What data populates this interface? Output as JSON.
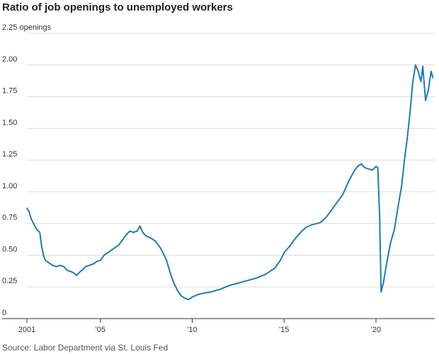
{
  "chart_data": {
    "type": "line",
    "title": "Ratio of job openings to unemployed workers",
    "source": "Source: Labor Department via St. Louis Fed",
    "y_unit_label": "2.25 openings",
    "yticks": [
      {
        "value": 0,
        "label": "0"
      },
      {
        "value": 0.25,
        "label": "0.25"
      },
      {
        "value": 0.5,
        "label": "0.50"
      },
      {
        "value": 0.75,
        "label": "0.75"
      },
      {
        "value": 1.0,
        "label": "1.00"
      },
      {
        "value": 1.25,
        "label": "1.25"
      },
      {
        "value": 1.5,
        "label": "1.50"
      },
      {
        "value": 1.75,
        "label": "1.75"
      },
      {
        "value": 2.0,
        "label": "2.00"
      },
      {
        "value": 2.25,
        "label": "2.25"
      }
    ],
    "xticks": [
      {
        "value": 2001,
        "label": "2001"
      },
      {
        "value": 2005,
        "label": "'05"
      },
      {
        "value": 2010,
        "label": "'10"
      },
      {
        "value": 2015,
        "label": "'15"
      },
      {
        "value": 2020,
        "label": "'20"
      }
    ],
    "xlim": [
      2001,
      2023.2
    ],
    "ylim": [
      0,
      2.25
    ],
    "grid": true,
    "line_color": "#1f7bb0",
    "series": [
      {
        "values": [
          [
            2001.0,
            0.87
          ],
          [
            2001.1,
            0.85
          ],
          [
            2001.25,
            0.78
          ],
          [
            2001.4,
            0.74
          ],
          [
            2001.55,
            0.7
          ],
          [
            2001.7,
            0.68
          ],
          [
            2001.8,
            0.57
          ],
          [
            2001.9,
            0.5
          ],
          [
            2002.0,
            0.46
          ],
          [
            2002.2,
            0.44
          ],
          [
            2002.4,
            0.42
          ],
          [
            2002.6,
            0.41
          ],
          [
            2002.8,
            0.42
          ],
          [
            2003.0,
            0.41
          ],
          [
            2003.2,
            0.38
          ],
          [
            2003.4,
            0.37
          ],
          [
            2003.55,
            0.36
          ],
          [
            2003.7,
            0.34
          ],
          [
            2003.9,
            0.37
          ],
          [
            2004.0,
            0.38
          ],
          [
            2004.2,
            0.41
          ],
          [
            2004.4,
            0.42
          ],
          [
            2004.6,
            0.43
          ],
          [
            2004.8,
            0.45
          ],
          [
            2005.0,
            0.46
          ],
          [
            2005.2,
            0.5
          ],
          [
            2005.4,
            0.52
          ],
          [
            2005.6,
            0.54
          ],
          [
            2005.8,
            0.56
          ],
          [
            2006.0,
            0.58
          ],
          [
            2006.2,
            0.62
          ],
          [
            2006.4,
            0.66
          ],
          [
            2006.6,
            0.69
          ],
          [
            2006.8,
            0.68
          ],
          [
            2007.0,
            0.69
          ],
          [
            2007.15,
            0.73
          ],
          [
            2007.3,
            0.68
          ],
          [
            2007.5,
            0.65
          ],
          [
            2007.7,
            0.64
          ],
          [
            2008.0,
            0.61
          ],
          [
            2008.3,
            0.55
          ],
          [
            2008.6,
            0.46
          ],
          [
            2008.8,
            0.36
          ],
          [
            2009.0,
            0.28
          ],
          [
            2009.2,
            0.22
          ],
          [
            2009.4,
            0.18
          ],
          [
            2009.6,
            0.16
          ],
          [
            2009.8,
            0.15
          ],
          [
            2010.0,
            0.17
          ],
          [
            2010.3,
            0.19
          ],
          [
            2010.6,
            0.2
          ],
          [
            2011.0,
            0.21
          ],
          [
            2011.5,
            0.23
          ],
          [
            2012.0,
            0.26
          ],
          [
            2012.5,
            0.28
          ],
          [
            2013.0,
            0.3
          ],
          [
            2013.5,
            0.32
          ],
          [
            2014.0,
            0.35
          ],
          [
            2014.5,
            0.4
          ],
          [
            2014.8,
            0.46
          ],
          [
            2015.0,
            0.52
          ],
          [
            2015.3,
            0.57
          ],
          [
            2015.6,
            0.63
          ],
          [
            2015.9,
            0.68
          ],
          [
            2016.2,
            0.72
          ],
          [
            2016.5,
            0.74
          ],
          [
            2016.8,
            0.75
          ],
          [
            2017.0,
            0.76
          ],
          [
            2017.3,
            0.8
          ],
          [
            2017.6,
            0.86
          ],
          [
            2017.9,
            0.92
          ],
          [
            2018.2,
            0.98
          ],
          [
            2018.5,
            1.08
          ],
          [
            2018.8,
            1.16
          ],
          [
            2019.0,
            1.2
          ],
          [
            2019.2,
            1.22
          ],
          [
            2019.4,
            1.19
          ],
          [
            2019.6,
            1.18
          ],
          [
            2019.8,
            1.17
          ],
          [
            2020.0,
            1.2
          ],
          [
            2020.1,
            1.19
          ],
          [
            2020.2,
            0.8
          ],
          [
            2020.28,
            0.21
          ],
          [
            2020.4,
            0.28
          ],
          [
            2020.6,
            0.45
          ],
          [
            2020.8,
            0.6
          ],
          [
            2021.0,
            0.7
          ],
          [
            2021.2,
            0.88
          ],
          [
            2021.4,
            1.05
          ],
          [
            2021.55,
            1.25
          ],
          [
            2021.7,
            1.42
          ],
          [
            2021.85,
            1.62
          ],
          [
            2022.0,
            1.86
          ],
          [
            2022.15,
            2.0
          ],
          [
            2022.3,
            1.95
          ],
          [
            2022.45,
            1.87
          ],
          [
            2022.55,
            1.99
          ],
          [
            2022.7,
            1.72
          ],
          [
            2022.85,
            1.8
          ],
          [
            2023.0,
            1.95
          ],
          [
            2023.1,
            1.9
          ]
        ]
      }
    ]
  }
}
